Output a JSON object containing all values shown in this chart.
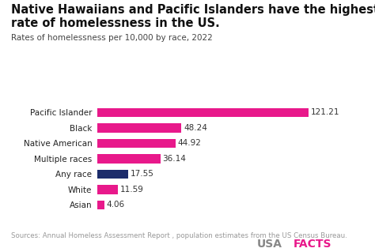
{
  "title_line1": "Native Hawaiians and Pacific Islanders have the highest",
  "title_line2": "rate of homelessness in the US.",
  "subtitle": "Rates of homelessness per 10,000 by race, 2022",
  "categories": [
    "Pacific Islander",
    "Black",
    "Native American",
    "Multiple races",
    "Any race",
    "White",
    "Asian"
  ],
  "values": [
    121.21,
    48.24,
    44.92,
    36.14,
    17.55,
    11.59,
    4.06
  ],
  "bar_colors": [
    "#E8198B",
    "#E8198B",
    "#E8198B",
    "#E8198B",
    "#1C2C6B",
    "#E8198B",
    "#E8198B"
  ],
  "background_color": "#FFFFFF",
  "title_fontsize": 10.5,
  "subtitle_fontsize": 7.5,
  "label_fontsize": 7.5,
  "value_fontsize": 7.5,
  "source_text": "Sources: Annual Homeless Assessment Report , population estimates from the US Census Bureau.",
  "brand_color_usa": "#888888",
  "brand_color_facts": "#E8198B",
  "xlim": [
    0,
    140
  ],
  "bar_height": 0.6
}
